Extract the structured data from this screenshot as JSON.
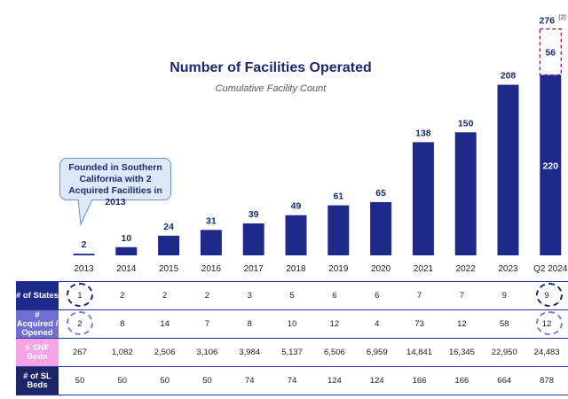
{
  "chart_data": {
    "type": "bar",
    "title": "Number of Facilities Operated",
    "subtitle": "Cumulative Facility Count",
    "categories": [
      "2013",
      "2014",
      "2015",
      "2016",
      "2017",
      "2018",
      "2019",
      "2020",
      "2021",
      "2022",
      "2023",
      "Q2 2024"
    ],
    "values": [
      2,
      10,
      24,
      31,
      39,
      49,
      61,
      65,
      138,
      150,
      208,
      220
    ],
    "stacked_segment": {
      "category": "Q2 2024",
      "value": 56,
      "style": "dashed-outline"
    },
    "total_label": {
      "category": "Q2 2024",
      "value": "276",
      "footnote": "(2)"
    },
    "ylim": [
      0,
      280
    ],
    "grid": false,
    "bar_color": "#1e2a8a",
    "segment_border_color": "#8e1e5e"
  },
  "callout": {
    "text": "Founded in Southern California with 2 Acquired Facilities in 2013"
  },
  "table": {
    "rows": [
      {
        "label": "# of States",
        "values": [
          "1",
          "2",
          "2",
          "2",
          "3",
          "5",
          "6",
          "6",
          "7",
          "7",
          "9",
          "9"
        ]
      },
      {
        "label": "# Acquired / Opened",
        "values": [
          "2",
          "8",
          "14",
          "7",
          "8",
          "10",
          "12",
          "4",
          "73",
          "12",
          "58",
          "12"
        ]
      },
      {
        "label": "# SNF Beds",
        "values": [
          "267",
          "1,082",
          "2,506",
          "3,106",
          "3,984",
          "5,137",
          "6,506",
          "6,959",
          "14,841",
          "16,345",
          "22,950",
          "24,483"
        ]
      },
      {
        "label": "# of SL Beds",
        "values": [
          "50",
          "50",
          "50",
          "50",
          "74",
          "74",
          "124",
          "124",
          "166",
          "166",
          "664",
          "878"
        ]
      }
    ]
  }
}
